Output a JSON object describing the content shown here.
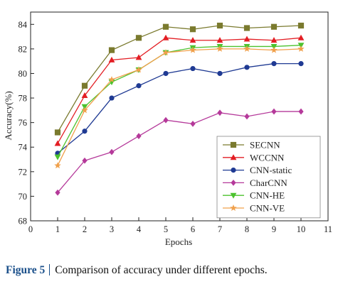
{
  "chart_data": {
    "type": "line",
    "xlabel": "Epochs",
    "ylabel": "Accuracy(%)",
    "xlim": [
      0,
      11
    ],
    "ylim": [
      68,
      85
    ],
    "xticks": [
      0,
      1,
      2,
      3,
      4,
      5,
      6,
      7,
      8,
      9,
      10,
      11
    ],
    "yticks": [
      68,
      70,
      72,
      74,
      76,
      78,
      80,
      82,
      84
    ],
    "grid": false,
    "legend_position": "bottom-right",
    "x": [
      1,
      2,
      3,
      4,
      5,
      6,
      7,
      8,
      9,
      10
    ],
    "series": [
      {
        "name": "SECNN",
        "color": "#7a7a2e",
        "marker": "square",
        "values": [
          75.2,
          79.0,
          81.9,
          82.9,
          83.8,
          83.6,
          83.9,
          83.7,
          83.8,
          83.9
        ]
      },
      {
        "name": "WCCNN",
        "color": "#e31e24",
        "marker": "triangle-up",
        "values": [
          74.3,
          78.2,
          81.1,
          81.3,
          82.9,
          82.7,
          82.7,
          82.8,
          82.7,
          82.9
        ]
      },
      {
        "name": "CNN-static",
        "color": "#1f3a93",
        "marker": "circle",
        "values": [
          73.5,
          75.3,
          78.0,
          79.0,
          80.0,
          80.4,
          80.0,
          80.5,
          80.8,
          80.8
        ]
      },
      {
        "name": "CharCNN",
        "color": "#b5399a",
        "marker": "diamond",
        "values": [
          70.3,
          72.9,
          73.6,
          74.9,
          76.2,
          75.9,
          76.8,
          76.5,
          76.9,
          76.9
        ]
      },
      {
        "name": "CNN-HE",
        "color": "#4cc22e",
        "marker": "triangle-down",
        "values": [
          73.2,
          77.3,
          79.3,
          80.3,
          81.7,
          82.1,
          82.2,
          82.2,
          82.2,
          82.3
        ]
      },
      {
        "name": "CNN-VE",
        "color": "#f0a04b",
        "marker": "star",
        "values": [
          72.5,
          77.0,
          79.5,
          80.3,
          81.7,
          81.9,
          82.0,
          82.0,
          81.9,
          82.0
        ]
      }
    ]
  },
  "caption": {
    "label": "Figure 5",
    "text": "Comparison of accuracy under different epochs."
  }
}
